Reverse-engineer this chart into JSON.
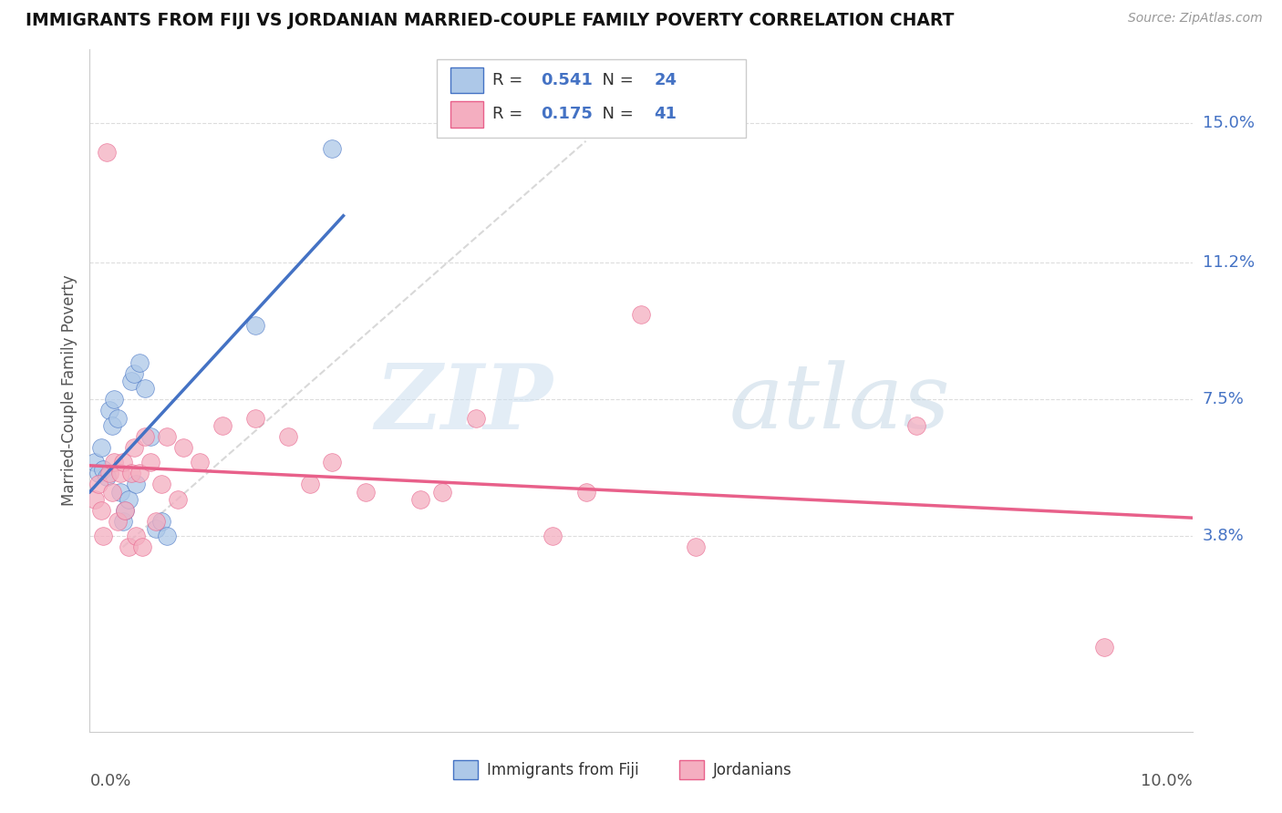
{
  "title": "IMMIGRANTS FROM FIJI VS JORDANIAN MARRIED-COUPLE FAMILY POVERTY CORRELATION CHART",
  "source": "Source: ZipAtlas.com",
  "ylabel": "Married-Couple Family Poverty",
  "ytick_labels": [
    "3.8%",
    "7.5%",
    "11.2%",
    "15.0%"
  ],
  "ytick_values": [
    3.8,
    7.5,
    11.2,
    15.0
  ],
  "xtick_left": "0.0%",
  "xtick_right": "10.0%",
  "xlim": [
    0.0,
    10.0
  ],
  "ylim": [
    -1.5,
    17.0
  ],
  "r_fiji": 0.541,
  "n_fiji": 24,
  "r_jordan": 0.175,
  "n_jordan": 41,
  "color_fiji": "#adc8e8",
  "color_jordan": "#f4aec0",
  "color_fiji_line": "#4472c4",
  "color_jordan_line": "#e8608a",
  "color_diagonal": "#c8c8c8",
  "watermark_zip": "ZIP",
  "watermark_atlas": "atlas",
  "fiji_points": [
    [
      0.05,
      5.8
    ],
    [
      0.08,
      5.5
    ],
    [
      0.1,
      6.2
    ],
    [
      0.12,
      5.6
    ],
    [
      0.15,
      5.4
    ],
    [
      0.18,
      7.2
    ],
    [
      0.2,
      6.8
    ],
    [
      0.22,
      7.5
    ],
    [
      0.25,
      7.0
    ],
    [
      0.28,
      5.0
    ],
    [
      0.3,
      4.2
    ],
    [
      0.32,
      4.5
    ],
    [
      0.35,
      4.8
    ],
    [
      0.38,
      8.0
    ],
    [
      0.4,
      8.2
    ],
    [
      0.42,
      5.2
    ],
    [
      0.45,
      8.5
    ],
    [
      0.5,
      7.8
    ],
    [
      0.55,
      6.5
    ],
    [
      0.6,
      4.0
    ],
    [
      0.65,
      4.2
    ],
    [
      0.7,
      3.8
    ],
    [
      1.5,
      9.5
    ],
    [
      2.2,
      14.3
    ]
  ],
  "jordan_points": [
    [
      0.05,
      4.8
    ],
    [
      0.08,
      5.2
    ],
    [
      0.1,
      4.5
    ],
    [
      0.12,
      3.8
    ],
    [
      0.15,
      14.2
    ],
    [
      0.18,
      5.5
    ],
    [
      0.2,
      5.0
    ],
    [
      0.22,
      5.8
    ],
    [
      0.25,
      4.2
    ],
    [
      0.28,
      5.5
    ],
    [
      0.3,
      5.8
    ],
    [
      0.32,
      4.5
    ],
    [
      0.35,
      3.5
    ],
    [
      0.38,
      5.5
    ],
    [
      0.4,
      6.2
    ],
    [
      0.42,
      3.8
    ],
    [
      0.45,
      5.5
    ],
    [
      0.48,
      3.5
    ],
    [
      0.5,
      6.5
    ],
    [
      0.55,
      5.8
    ],
    [
      0.6,
      4.2
    ],
    [
      0.65,
      5.2
    ],
    [
      0.7,
      6.5
    ],
    [
      0.8,
      4.8
    ],
    [
      0.85,
      6.2
    ],
    [
      1.0,
      5.8
    ],
    [
      1.2,
      6.8
    ],
    [
      1.5,
      7.0
    ],
    [
      1.8,
      6.5
    ],
    [
      2.0,
      5.2
    ],
    [
      2.2,
      5.8
    ],
    [
      2.5,
      5.0
    ],
    [
      3.0,
      4.8
    ],
    [
      3.2,
      5.0
    ],
    [
      3.5,
      7.0
    ],
    [
      4.2,
      3.8
    ],
    [
      4.5,
      5.0
    ],
    [
      5.0,
      9.8
    ],
    [
      5.5,
      3.5
    ],
    [
      7.5,
      6.8
    ],
    [
      9.2,
      0.8
    ]
  ]
}
